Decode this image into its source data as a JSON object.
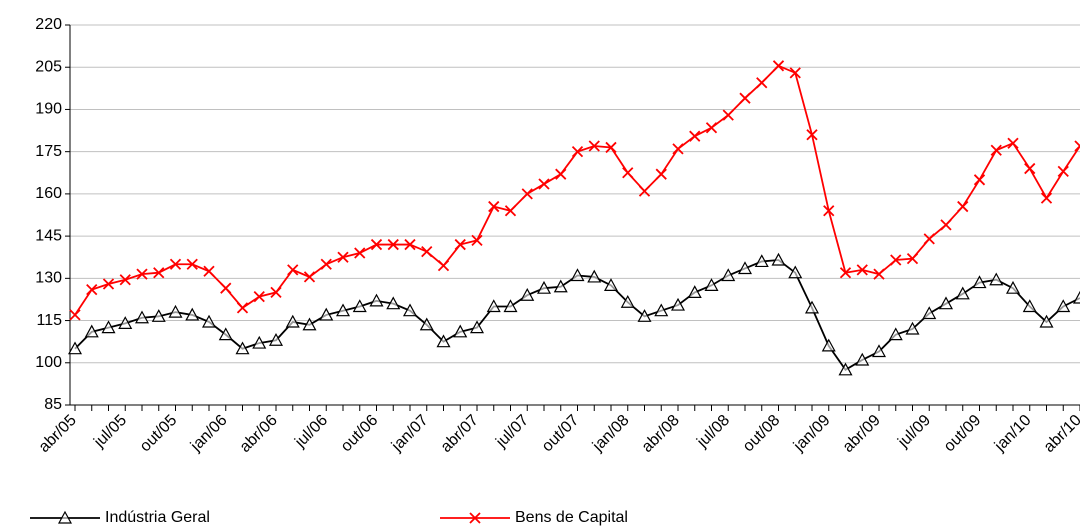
{
  "chart_data": {
    "type": "line",
    "categories": [
      "abr/05",
      null,
      null,
      "jul/05",
      null,
      null,
      "out/05",
      null,
      null,
      "jan/06",
      null,
      null,
      "abr/06",
      null,
      null,
      "jul/06",
      null,
      null,
      "out/06",
      null,
      null,
      "jan/07",
      null,
      null,
      "abr/07",
      null,
      null,
      "jul/07",
      null,
      null,
      "out/07",
      null,
      null,
      "jan/08",
      null,
      null,
      "abr/08",
      null,
      null,
      "jul/08",
      null,
      null,
      "out/08",
      null,
      null,
      "jan/09",
      null,
      null,
      "abr/09",
      null,
      null,
      "jul/09",
      null,
      null,
      "out/09",
      null,
      null,
      "jan/10",
      null,
      null,
      "abr/10"
    ],
    "series": [
      {
        "name": "Indústria Geral",
        "color": "#000000",
        "marker": "triangle",
        "values": [
          105,
          111,
          112.5,
          114,
          116,
          116.5,
          118,
          117,
          114.5,
          110,
          105,
          107,
          108,
          114.5,
          113.5,
          117,
          118.5,
          120,
          122,
          121,
          118.5,
          113.5,
          107.5,
          111,
          112.5,
          120,
          120,
          124,
          126.5,
          127,
          131,
          130.5,
          127.5,
          121.5,
          116.5,
          118.5,
          120.5,
          125,
          127.5,
          131,
          133.5,
          136,
          136.5,
          132,
          119.5,
          106,
          97.5,
          101,
          104,
          110,
          112,
          117.5,
          121,
          124.5,
          128.5,
          129.5,
          126.5,
          120,
          114.5,
          120,
          123
        ]
      },
      {
        "name": "Bens de Capital",
        "color": "#ff0000",
        "marker": "x",
        "values": [
          117,
          126,
          128,
          129.5,
          131.5,
          132,
          135,
          135,
          132.5,
          126.5,
          119.5,
          123.5,
          125,
          133,
          130.5,
          135,
          137.5,
          139,
          142,
          142,
          142,
          139.5,
          134.5,
          142,
          143.5,
          155.5,
          154,
          160,
          163.5,
          167,
          175,
          177,
          176.5,
          167.5,
          161,
          167,
          176,
          180.5,
          183.5,
          188,
          194,
          199.5,
          205.5,
          203,
          181,
          154,
          132,
          133,
          131.5,
          136.5,
          137,
          144,
          149,
          155.5,
          165,
          175.5,
          178,
          169,
          158.5,
          168,
          177
        ]
      }
    ],
    "ylim": [
      85,
      220
    ],
    "yticks": [
      85,
      100,
      115,
      130,
      145,
      160,
      175,
      190,
      205,
      220
    ],
    "grid": true,
    "legend": "bottom"
  }
}
